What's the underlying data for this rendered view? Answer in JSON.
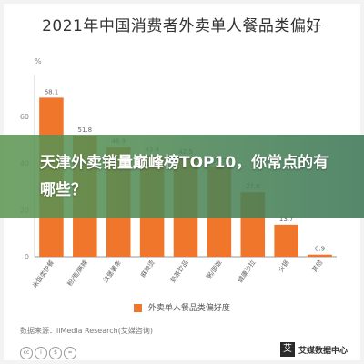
{
  "title": "2021年中国消费者外卖单人餐品类偏好",
  "overlay_text": "天津外卖销量巅峰榜TOP10，你常点的有哪些？",
  "legend_label": "外卖单人餐品类偏好度",
  "source": "数据来源：iiMedia Research(艾媒咨询)",
  "brand": {
    "logo": "艾",
    "name": "艾媒数据中心"
  },
  "bar_color": "#f0762b",
  "chart_data": {
    "type": "bar",
    "unit": "%",
    "categories": [
      "米饭类快餐",
      "粉/面/麻辣",
      "汉堡薯条",
      "麻辣烫",
      "奶茶饮品",
      "粥/面饭",
      "健康沙拉",
      "火锅",
      "其他"
    ],
    "values": [
      68.1,
      51.8,
      46.9,
      43.4,
      42.5,
      38.7,
      27.6,
      13.7,
      0.9
    ],
    "y_ticks": [
      0,
      20,
      40,
      60
    ],
    "ylim": [
      0,
      78
    ]
  }
}
